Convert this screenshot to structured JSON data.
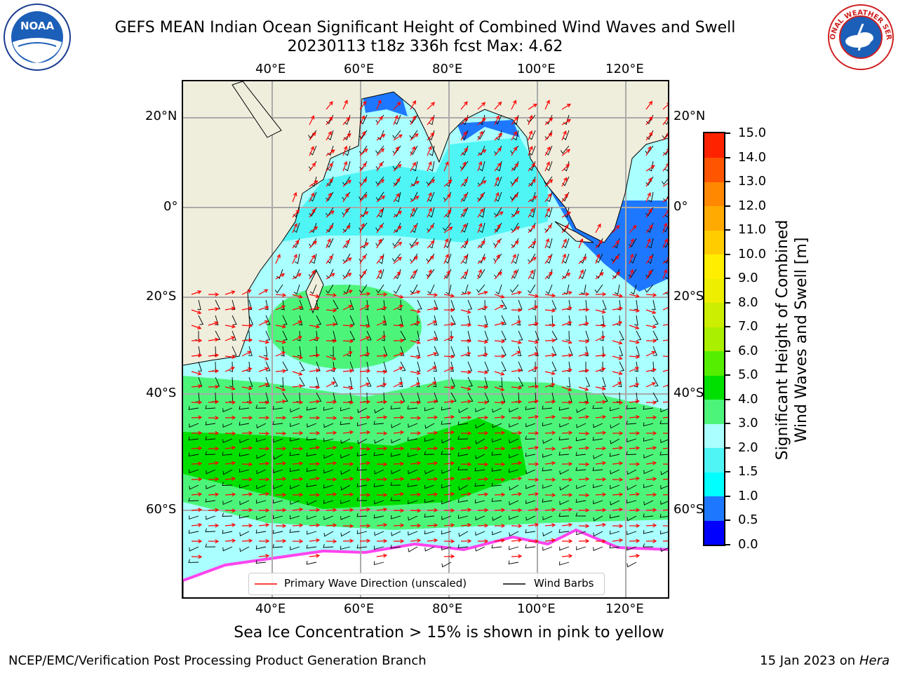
{
  "title": {
    "line1": "GEFS MEAN Indian Ocean Significant Height of Combined Wind Waves and Swell",
    "line2": "20230113 t18z 336h fcst   Max: 4.62"
  },
  "logos": {
    "noaa_text": "NOAA",
    "nws_text": "NATIONAL WEATHER SERVICE"
  },
  "axes": {
    "lon_ticks": [
      "40°E",
      "60°E",
      "80°E",
      "100°E",
      "120°E"
    ],
    "lat_ticks": [
      "20°N",
      "0°",
      "20°S",
      "40°S",
      "60°S"
    ]
  },
  "legend": {
    "wave_label": "Primary Wave Direction (unscaled)",
    "barb_label": "Wind Barbs",
    "wave_color": "#ff0000",
    "barb_color": "#000000"
  },
  "colorbar": {
    "label_line1": "Significant Height of Combined",
    "label_line2": "Wind Waves and Swell [m]",
    "ticks": [
      "0.0",
      "0.5",
      "1.0",
      "1.5",
      "2.0",
      "3.0",
      "4.0",
      "5.0",
      "6.0",
      "7.0",
      "8.0",
      "9.0",
      "10.0",
      "11.0",
      "12.0",
      "13.0",
      "14.0",
      "15.0"
    ],
    "colors": [
      "#0000ff",
      "#1e78ff",
      "#00ffff",
      "#4ff5f5",
      "#aaffff",
      "#4cf57a",
      "#00e000",
      "#55ee00",
      "#aaee00",
      "#ccee00",
      "#eeee00",
      "#ffee00",
      "#ffcc00",
      "#ffaa00",
      "#ff8800",
      "#ff5500",
      "#ff2200"
    ]
  },
  "notes": {
    "sea_ice": "Sea Ice Concentration > 15% is shown in pink to yellow"
  },
  "footer": {
    "left": "NCEP/EMC/Verification Post Processing Product Generation Branch",
    "right_prefix": "15 Jan 2023 on ",
    "right_host": "Hera"
  }
}
